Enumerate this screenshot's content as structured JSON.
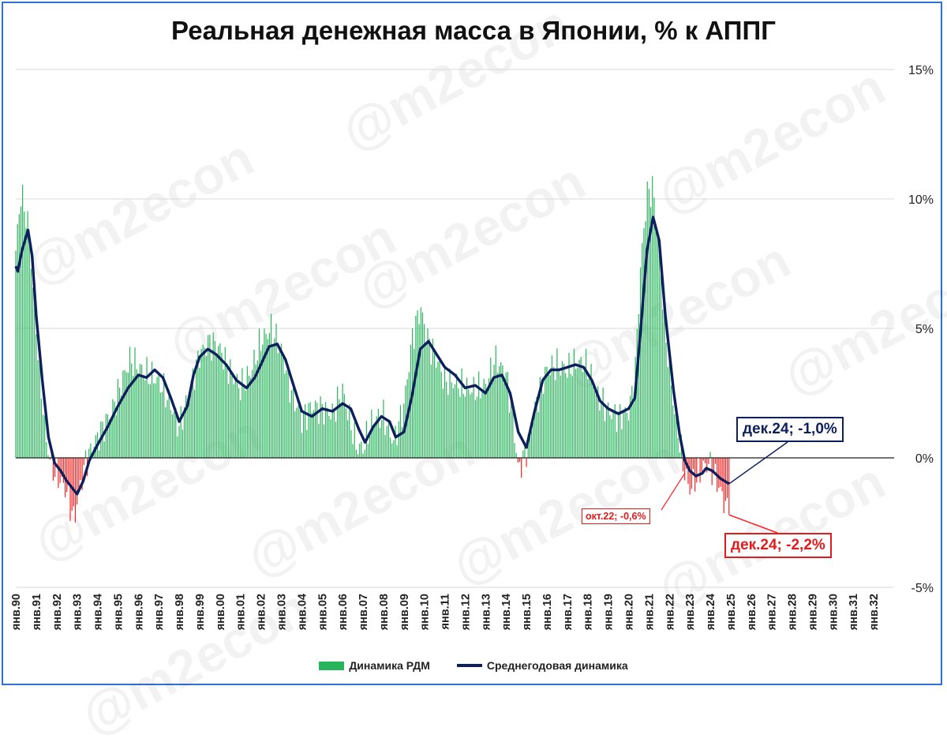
{
  "title": "Реальная денежная масса в Японии, % к АППГ",
  "watermark": "@m2econ",
  "legend": {
    "bars": "Динамика РДМ",
    "line": "Среднегодовая динамика"
  },
  "annotations": {
    "avg_last": "дек.24; -1,0%",
    "bar_last": "дек.24; -2,2%",
    "bar_oct22": "окт.22; -0,6%"
  },
  "colors": {
    "positive_bar": "#27b45a",
    "negative_bar": "#ff1f1f",
    "avg_line": "#0d1f5c",
    "grid": "#d9d9d9",
    "frame": "#2e6fd8"
  },
  "chart_data": {
    "type": "bar",
    "secondary_type": "line",
    "title": "Реальная денежная масса в Японии, % к АППГ",
    "xlabel": "",
    "ylabel": "",
    "ylim": [
      -5,
      15
    ],
    "y_ticks": [
      "-5%",
      "0%",
      "5%",
      "10%",
      "15%"
    ],
    "y_axis_side": "right",
    "grid": true,
    "legend_position": "bottom",
    "x_range": [
      "янв.90",
      "янв.33"
    ],
    "x_tick_labels": [
      "янв.90",
      "янв.91",
      "янв.92",
      "янв.93",
      "янв.94",
      "янв.95",
      "янв.96",
      "янв.97",
      "янв.98",
      "янв.99",
      "янв.00",
      "янв.01",
      "янв.02",
      "янв.03",
      "янв.04",
      "янв.05",
      "янв.06",
      "янв.07",
      "янв.08",
      "янв.09",
      "янв.10",
      "янв.11",
      "янв.12",
      "янв.13",
      "янв.14",
      "янв.15",
      "янв.16",
      "янв.17",
      "янв.18",
      "янв.19",
      "янв.20",
      "янв.21",
      "янв.22",
      "янв.23",
      "янв.24",
      "янв.25",
      "янв.26",
      "янв.27",
      "янв.28",
      "янв.29",
      "янв.30",
      "янв.31",
      "янв.32"
    ],
    "series": [
      {
        "name": "Динамика РДМ",
        "kind": "bar",
        "frequency": "monthly",
        "start": "янв.90",
        "anchors": [
          [
            "1990.00",
            8.0
          ],
          [
            "1990.25",
            10.2
          ],
          [
            "1990.60",
            9.0
          ],
          [
            "1990.95",
            5.5
          ],
          [
            "1991.20",
            3.0
          ],
          [
            "1991.50",
            0.6
          ],
          [
            "1991.80",
            -0.4
          ],
          [
            "1992.20",
            -0.9
          ],
          [
            "1992.50",
            -1.3
          ],
          [
            "1992.85",
            -2.4
          ],
          [
            "1993.10",
            -1.3
          ],
          [
            "1993.40",
            -0.2
          ],
          [
            "1993.80",
            0.5
          ],
          [
            "1994.30",
            1.2
          ],
          [
            "1994.80",
            2.0
          ],
          [
            "1995.30",
            3.2
          ],
          [
            "1995.60",
            3.8
          ],
          [
            "1996.00",
            3.5
          ],
          [
            "1996.50",
            3.2
          ],
          [
            "1997.00",
            3.0
          ],
          [
            "1997.50",
            2.2
          ],
          [
            "1998.00",
            1.2
          ],
          [
            "1998.50",
            2.6
          ],
          [
            "1999.00",
            4.0
          ],
          [
            "1999.50",
            4.5
          ],
          [
            "2000.00",
            4.2
          ],
          [
            "2000.50",
            3.3
          ],
          [
            "2001.00",
            2.7
          ],
          [
            "2001.50",
            3.3
          ],
          [
            "2002.00",
            4.5
          ],
          [
            "2002.50",
            5.0
          ],
          [
            "2003.00",
            4.2
          ],
          [
            "2003.50",
            2.5
          ],
          [
            "2004.00",
            1.5
          ],
          [
            "2004.50",
            2.0
          ],
          [
            "2005.00",
            1.9
          ],
          [
            "2005.50",
            1.7
          ],
          [
            "2006.00",
            2.6
          ],
          [
            "2006.30",
            1.6
          ],
          [
            "2006.70",
            0.4
          ],
          [
            "2007.00",
            0.4
          ],
          [
            "2007.50",
            1.5
          ],
          [
            "2008.00",
            1.6
          ],
          [
            "2008.50",
            0.6
          ],
          [
            "2009.00",
            2.0
          ],
          [
            "2009.40",
            4.6
          ],
          [
            "2009.80",
            5.8
          ],
          [
            "2010.20",
            4.5
          ],
          [
            "2010.60",
            3.8
          ],
          [
            "2011.00",
            3.0
          ],
          [
            "2011.50",
            2.9
          ],
          [
            "2012.00",
            2.7
          ],
          [
            "2012.50",
            2.6
          ],
          [
            "2013.00",
            2.8
          ],
          [
            "2013.50",
            3.8
          ],
          [
            "2014.00",
            3.2
          ],
          [
            "2014.30",
            1.8
          ],
          [
            "2014.60",
            -0.5
          ],
          [
            "2015.00",
            0.3
          ],
          [
            "2015.50",
            2.2
          ],
          [
            "2016.00",
            3.4
          ],
          [
            "2016.50",
            3.6
          ],
          [
            "2017.00",
            3.4
          ],
          [
            "2017.50",
            3.7
          ],
          [
            "2018.00",
            3.5
          ],
          [
            "2018.50",
            2.4
          ],
          [
            "2019.00",
            1.8
          ],
          [
            "2019.50",
            1.6
          ],
          [
            "2020.00",
            1.8
          ],
          [
            "2020.30",
            3.0
          ],
          [
            "2020.60",
            7.5
          ],
          [
            "2020.90",
            10.2
          ],
          [
            "2021.20",
            10.4
          ],
          [
            "2021.50",
            8.0
          ],
          [
            "2021.80",
            4.8
          ],
          [
            "2022.20",
            2.0
          ],
          [
            "2022.50",
            0.6
          ],
          [
            "2022.75",
            -0.6
          ],
          [
            "2023.00",
            -1.2
          ],
          [
            "2023.30",
            -0.8
          ],
          [
            "2023.60",
            -0.4
          ],
          [
            "2023.90",
            -0.2
          ],
          [
            "2024.20",
            -0.6
          ],
          [
            "2024.50",
            -1.3
          ],
          [
            "2024.92",
            -2.2
          ]
        ],
        "last": {
          "date": "дек.24",
          "value": -2.2
        }
      },
      {
        "name": "Среднегодовая динамика",
        "kind": "line",
        "points": [
          [
            "1990.00",
            7.4
          ],
          [
            "1990.10",
            7.2
          ],
          [
            "1990.30",
            8.0
          ],
          [
            "1990.60",
            8.8
          ],
          [
            "1990.80",
            7.8
          ],
          [
            "1991.00",
            5.5
          ],
          [
            "1991.30",
            3.0
          ],
          [
            "1991.60",
            0.8
          ],
          [
            "1991.90",
            -0.2
          ],
          [
            "1992.20",
            -0.5
          ],
          [
            "1992.50",
            -0.9
          ],
          [
            "1993.00",
            -1.4
          ],
          [
            "1993.30",
            -0.9
          ],
          [
            "1993.60",
            -0.1
          ],
          [
            "1994.00",
            0.5
          ],
          [
            "1994.50",
            1.2
          ],
          [
            "1995.00",
            2.0
          ],
          [
            "1995.50",
            2.7
          ],
          [
            "1996.00",
            3.2
          ],
          [
            "1996.40",
            3.1
          ],
          [
            "1996.80",
            3.4
          ],
          [
            "1997.20",
            3.1
          ],
          [
            "1997.60",
            2.3
          ],
          [
            "1998.00",
            1.4
          ],
          [
            "1998.40",
            2.0
          ],
          [
            "1998.70",
            3.2
          ],
          [
            "1999.00",
            3.9
          ],
          [
            "1999.40",
            4.2
          ],
          [
            "1999.80",
            4.0
          ],
          [
            "2000.30",
            3.6
          ],
          [
            "2000.80",
            3.0
          ],
          [
            "2001.30",
            2.7
          ],
          [
            "2001.70",
            3.1
          ],
          [
            "2002.00",
            3.6
          ],
          [
            "2002.40",
            4.3
          ],
          [
            "2002.80",
            4.4
          ],
          [
            "2003.20",
            3.8
          ],
          [
            "2003.60",
            2.8
          ],
          [
            "2004.00",
            1.8
          ],
          [
            "2004.50",
            1.6
          ],
          [
            "2005.00",
            1.9
          ],
          [
            "2005.50",
            1.8
          ],
          [
            "2006.00",
            2.1
          ],
          [
            "2006.40",
            1.9
          ],
          [
            "2006.80",
            1.1
          ],
          [
            "2007.10",
            0.6
          ],
          [
            "2007.50",
            1.2
          ],
          [
            "2007.90",
            1.6
          ],
          [
            "2008.30",
            1.4
          ],
          [
            "2008.60",
            0.8
          ],
          [
            "2009.00",
            1.0
          ],
          [
            "2009.40",
            2.4
          ],
          [
            "2009.80",
            4.2
          ],
          [
            "2010.20",
            4.5
          ],
          [
            "2010.60",
            4.0
          ],
          [
            "2011.00",
            3.5
          ],
          [
            "2011.50",
            3.2
          ],
          [
            "2012.00",
            2.7
          ],
          [
            "2012.50",
            2.8
          ],
          [
            "2013.00",
            2.5
          ],
          [
            "2013.40",
            3.1
          ],
          [
            "2013.80",
            3.2
          ],
          [
            "2014.20",
            2.5
          ],
          [
            "2014.60",
            1.0
          ],
          [
            "2015.00",
            0.4
          ],
          [
            "2015.40",
            1.8
          ],
          [
            "2015.80",
            3.0
          ],
          [
            "2016.20",
            3.4
          ],
          [
            "2016.60",
            3.4
          ],
          [
            "2017.00",
            3.5
          ],
          [
            "2017.40",
            3.6
          ],
          [
            "2017.80",
            3.5
          ],
          [
            "2018.20",
            3.0
          ],
          [
            "2018.60",
            2.2
          ],
          [
            "2019.00",
            1.9
          ],
          [
            "2019.50",
            1.7
          ],
          [
            "2020.00",
            1.9
          ],
          [
            "2020.30",
            2.3
          ],
          [
            "2020.60",
            5.0
          ],
          [
            "2020.90",
            8.0
          ],
          [
            "2021.20",
            9.3
          ],
          [
            "2021.50",
            8.4
          ],
          [
            "2021.80",
            5.5
          ],
          [
            "2022.20",
            2.6
          ],
          [
            "2022.50",
            0.9
          ],
          [
            "2022.75",
            -0.1
          ],
          [
            "2023.00",
            -0.5
          ],
          [
            "2023.30",
            -0.7
          ],
          [
            "2023.60",
            -0.6
          ],
          [
            "2023.80",
            -0.4
          ],
          [
            "2024.10",
            -0.5
          ],
          [
            "2024.50",
            -0.8
          ],
          [
            "2024.92",
            -1.0
          ]
        ],
        "last": {
          "date": "дек.24",
          "value": -1.0
        }
      }
    ]
  }
}
